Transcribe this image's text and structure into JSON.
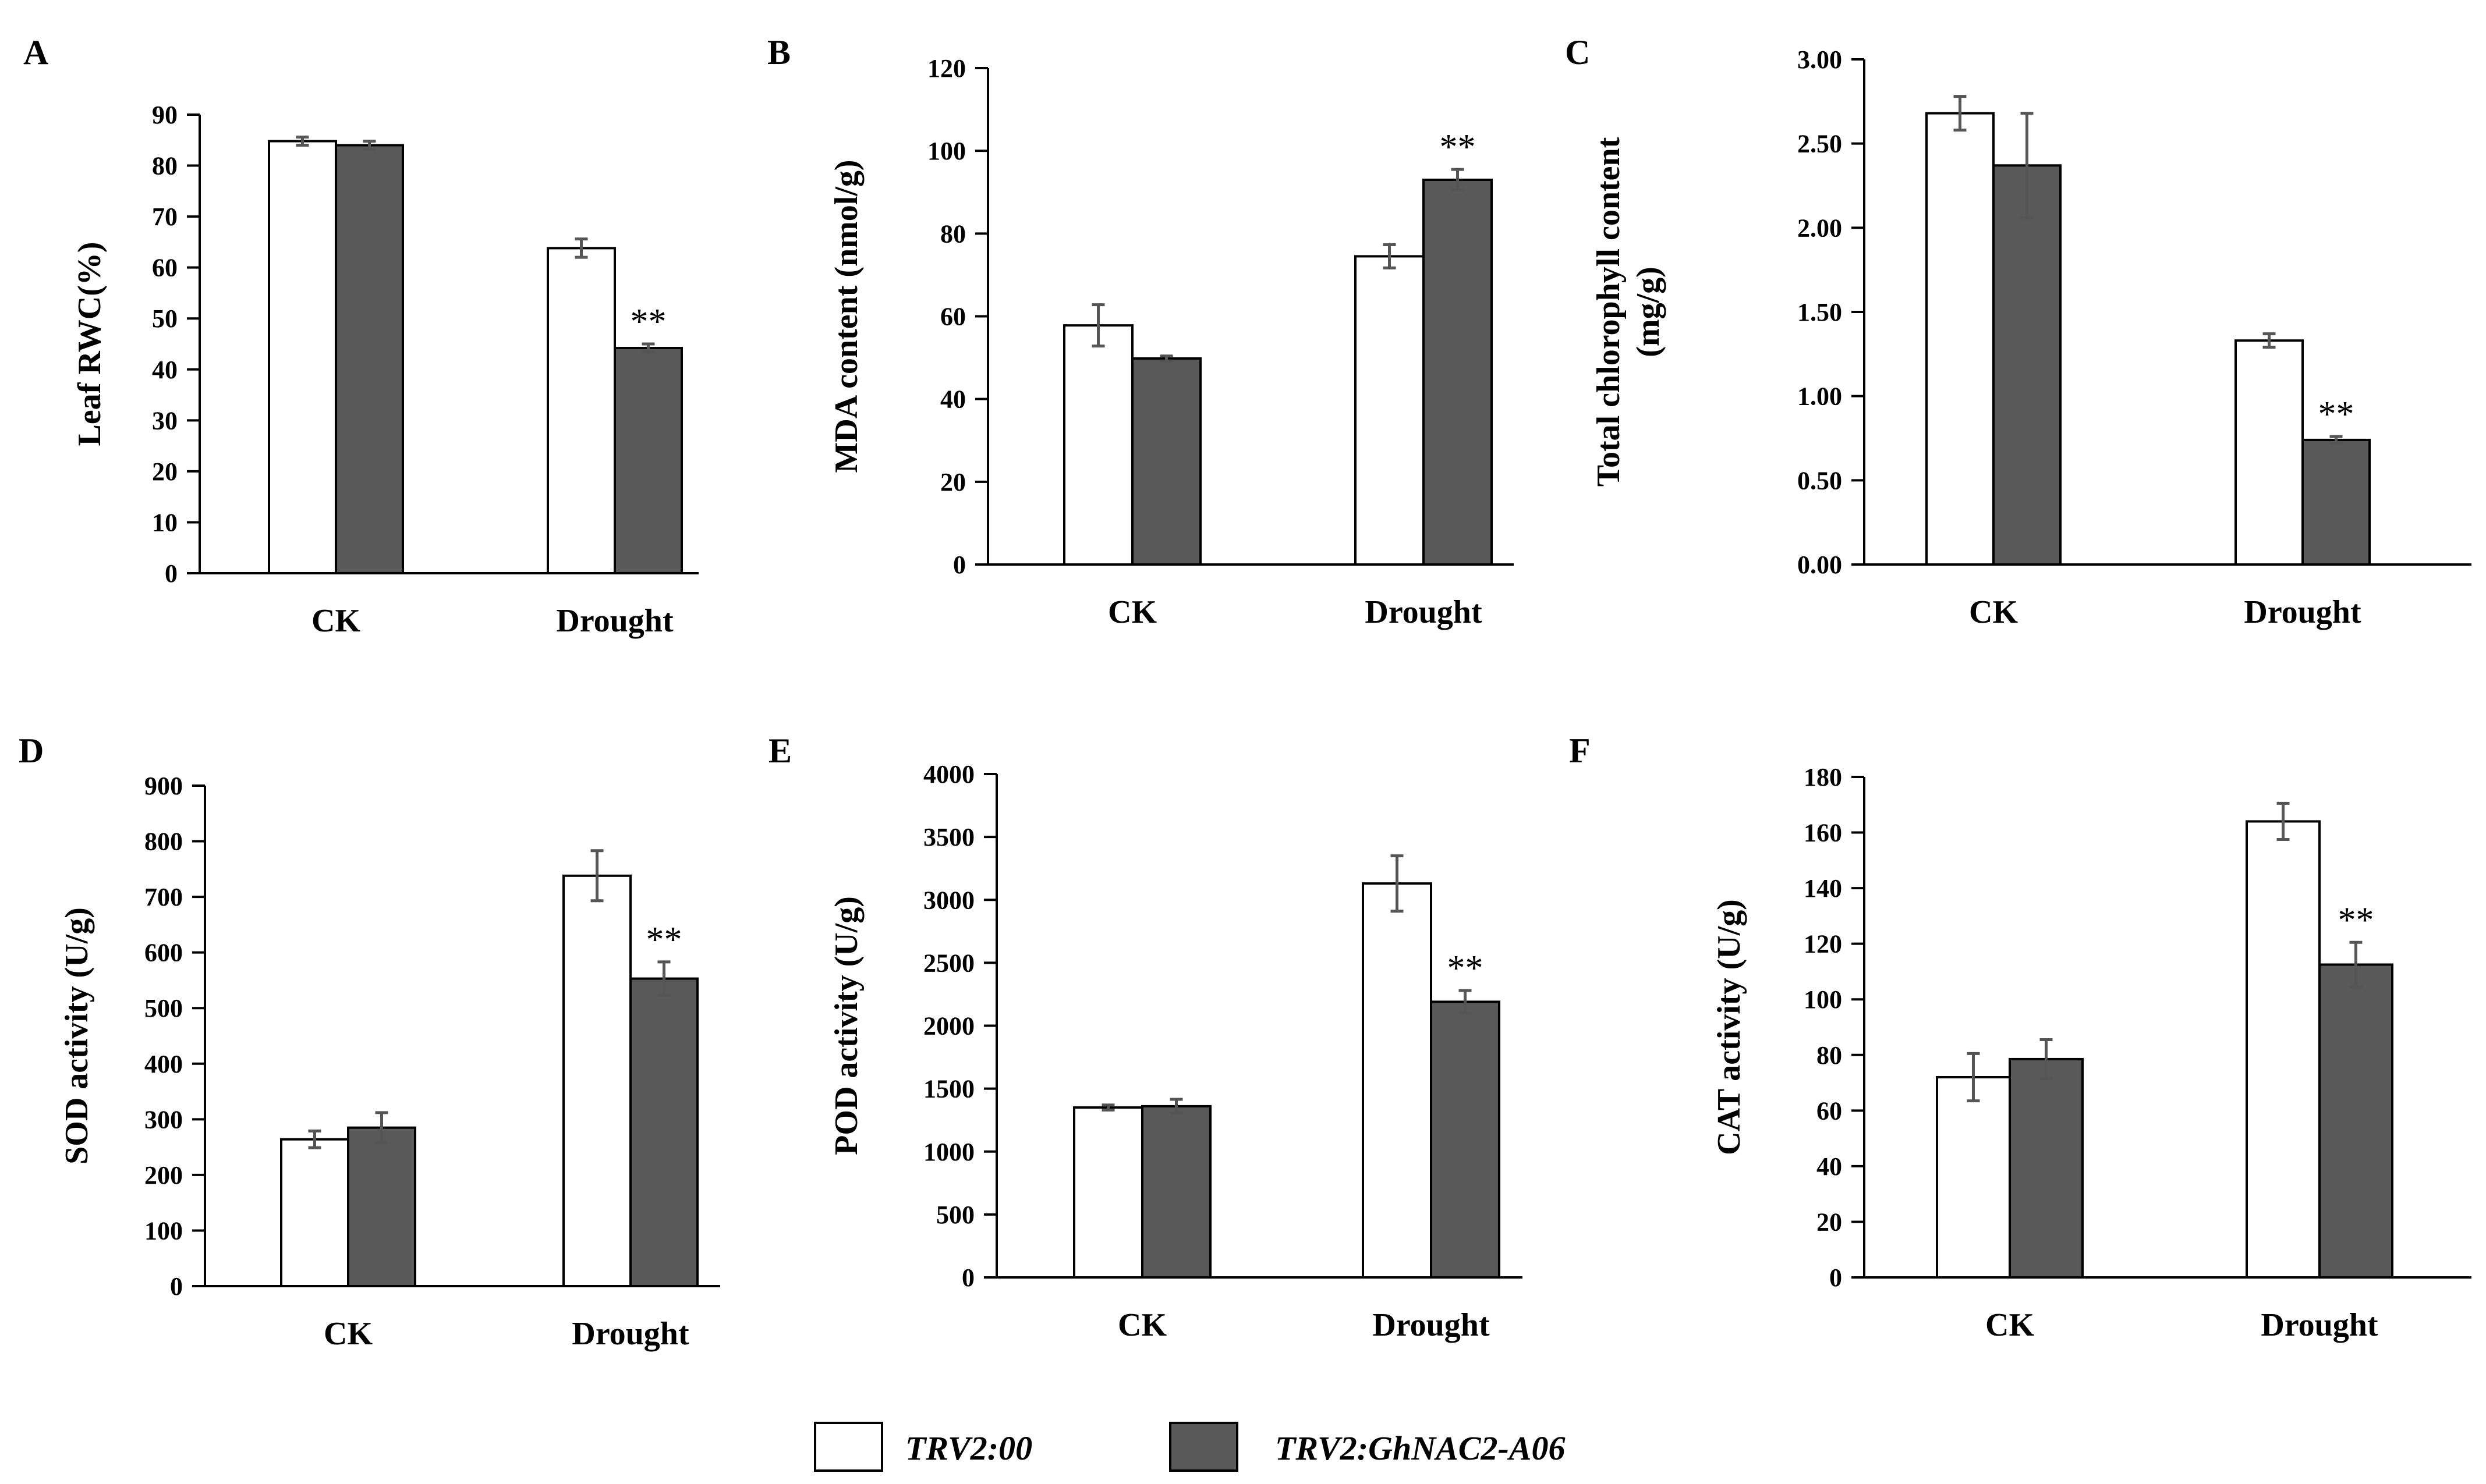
{
  "colors": {
    "control_fill": "#ffffff",
    "treatment_fill": "#595959",
    "axis": "#000000",
    "errorbar": "#555555"
  },
  "legend": [
    {
      "label": "TRV2:00",
      "color": "#ffffff"
    },
    {
      "label": "TRV2:GhNAC2-A06",
      "color": "#595959"
    }
  ],
  "chart_data": [
    {
      "panel": "A",
      "type": "bar",
      "ylabel_lines": [
        "Leaf RWC(%)"
      ],
      "ylim": [
        0,
        90
      ],
      "yticks": [
        "0",
        "10",
        "20",
        "30",
        "40",
        "50",
        "60",
        "70",
        "80",
        "90"
      ],
      "categories": [
        "CK",
        "Drought"
      ],
      "series": [
        {
          "name": "TRV2:00",
          "values": [
            84.8,
            63.8
          ],
          "errors": [
            0.8,
            1.8
          ]
        },
        {
          "name": "TRV2:GhNAC2-A06",
          "values": [
            84.0,
            44.2
          ],
          "errors": [
            0.8,
            0.8
          ]
        }
      ],
      "significance": [
        {
          "category": "Drought",
          "series": "TRV2:GhNAC2-A06",
          "label": "**"
        }
      ]
    },
    {
      "panel": "B",
      "type": "bar",
      "ylabel_lines": [
        "MDA content (nmol/g)"
      ],
      "ylim": [
        0,
        120
      ],
      "yticks": [
        "0",
        "20",
        "40",
        "60",
        "80",
        "100",
        "120"
      ],
      "categories": [
        "CK",
        "Drought"
      ],
      "series": [
        {
          "name": "TRV2:00",
          "values": [
            57.8,
            74.5
          ],
          "errors": [
            5.0,
            2.8
          ]
        },
        {
          "name": "TRV2:GhNAC2-A06",
          "values": [
            49.8,
            93.0
          ],
          "errors": [
            0.6,
            2.5
          ]
        }
      ],
      "significance": [
        {
          "category": "Drought",
          "series": "TRV2:GhNAC2-A06",
          "label": "**"
        }
      ]
    },
    {
      "panel": "C",
      "type": "bar",
      "ylabel_lines": [
        "Total chlorophyll content",
        "(mg/g)"
      ],
      "ylim": [
        0,
        3
      ],
      "yticks": [
        "0.00",
        "0.50",
        "1.00",
        "1.50",
        "2.00",
        "2.50",
        "3.00"
      ],
      "categories": [
        "CK",
        "Drought"
      ],
      "series": [
        {
          "name": "TRV2:00",
          "values": [
            2.68,
            1.33
          ],
          "errors": [
            0.1,
            0.04
          ]
        },
        {
          "name": "TRV2:GhNAC2-A06",
          "values": [
            2.37,
            0.74
          ],
          "errors": [
            0.31,
            0.02
          ]
        }
      ],
      "significance": [
        {
          "category": "Drought",
          "series": "TRV2:GhNAC2-A06",
          "label": "**"
        }
      ]
    },
    {
      "panel": "D",
      "type": "bar",
      "ylabel_lines": [
        "SOD activity (U/g)"
      ],
      "ylim": [
        0,
        900
      ],
      "yticks": [
        "0",
        "100",
        "200",
        "300",
        "400",
        "500",
        "600",
        "700",
        "800",
        "900"
      ],
      "categories": [
        "CK",
        "Drought"
      ],
      "series": [
        {
          "name": "TRV2:00",
          "values": [
            264,
            738
          ],
          "errors": [
            15,
            45
          ]
        },
        {
          "name": "TRV2:GhNAC2-A06",
          "values": [
            285,
            553
          ],
          "errors": [
            27,
            30
          ]
        }
      ],
      "significance": [
        {
          "category": "Drought",
          "series": "TRV2:GhNAC2-A06",
          "label": "**"
        }
      ]
    },
    {
      "panel": "E",
      "type": "bar",
      "ylabel_lines": [
        "POD activity (U/g)"
      ],
      "ylim": [
        0,
        4000
      ],
      "yticks": [
        "0",
        "500",
        "1000",
        "1500",
        "2000",
        "2500",
        "3000",
        "3500",
        "4000"
      ],
      "categories": [
        "CK",
        "Drought"
      ],
      "series": [
        {
          "name": "TRV2:00",
          "values": [
            1350,
            3130
          ],
          "errors": [
            20,
            220
          ]
        },
        {
          "name": "TRV2:GhNAC2-A06",
          "values": [
            1360,
            2190
          ],
          "errors": [
            55,
            90
          ]
        }
      ],
      "significance": [
        {
          "category": "Drought",
          "series": "TRV2:GhNAC2-A06",
          "label": "**"
        }
      ]
    },
    {
      "panel": "F",
      "type": "bar",
      "ylabel_lines": [
        "CAT activity (U/g)"
      ],
      "ylim": [
        0,
        180
      ],
      "yticks": [
        "0",
        "20",
        "40",
        "60",
        "80",
        "100",
        "120",
        "140",
        "160",
        "180"
      ],
      "categories": [
        "CK",
        "Drought"
      ],
      "series": [
        {
          "name": "TRV2:00",
          "values": [
            72,
            164
          ],
          "errors": [
            8.5,
            6.5
          ]
        },
        {
          "name": "TRV2:GhNAC2-A06",
          "values": [
            78.5,
            112.5
          ],
          "errors": [
            7,
            8
          ]
        }
      ],
      "significance": [
        {
          "category": "Drought",
          "series": "TRV2:GhNAC2-A06",
          "label": "**"
        }
      ]
    }
  ]
}
